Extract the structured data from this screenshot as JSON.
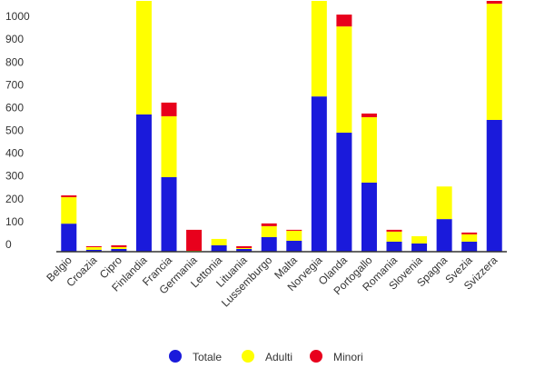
{
  "chart_data": {
    "type": "stacked_bar",
    "categories": [
      "Belgio",
      "Croazia",
      "Cipro",
      "Finlandia",
      "Francia",
      "Germania",
      "Lettonia",
      "Lituania",
      "Lussemburgo",
      "Malta",
      "Norvegia",
      "Olanda",
      "Portogallo",
      "Romania",
      "Slovenia",
      "Spagna",
      "Svezia",
      "Svizzera"
    ],
    "series": [
      {
        "name": "Totale",
        "color": "#1a1adb",
        "values": [
          123,
          8,
          12,
          602,
          327,
          2,
          28,
          12,
          64,
          48,
          681,
          522,
          303,
          44,
          36,
          143,
          44,
          578
        ]
      },
      {
        "name": "Adulti",
        "color": "#ffff00",
        "values": [
          116,
          12,
          8,
          520,
          267,
          2,
          28,
          4,
          48,
          44,
          430,
          466,
          287,
          44,
          32,
          143,
          32,
          510
        ]
      },
      {
        "name": "Minori",
        "color": "#e8001c",
        "values": [
          8,
          4,
          8,
          0,
          60,
          92,
          0,
          8,
          12,
          4,
          0,
          52,
          16,
          8,
          0,
          0,
          8,
          20
        ]
      }
    ],
    "ylim": [
      0,
      1100
    ],
    "yticks": [
      0,
      100,
      200,
      300,
      400,
      500,
      600,
      700,
      800,
      900,
      1000
    ],
    "grid": false
  }
}
